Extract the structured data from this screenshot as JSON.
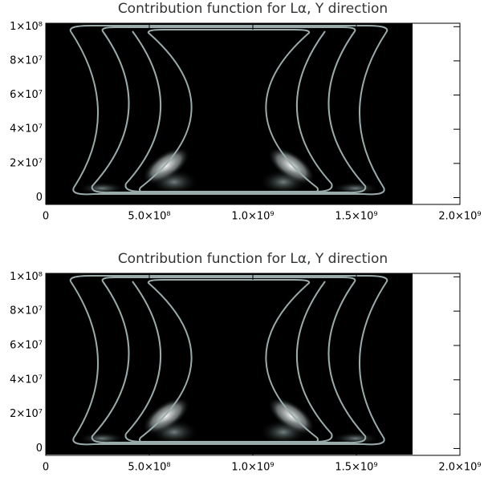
{
  "chart_data": [
    {
      "type": "heatmap",
      "title": "Contribution function for Lα, Y direction",
      "xlim": [
        0,
        2000000000
      ],
      "ylim": [
        -4000000,
        102000000
      ],
      "xticks": [
        0,
        {
          "value": 500000000,
          "label": "5.0×10⁸"
        },
        {
          "value": 1000000000,
          "label": "1.0×10⁹"
        },
        {
          "value": 1500000000,
          "label": "1.5×10⁹"
        },
        {
          "value": 2000000000,
          "label": "2.0×10⁹"
        }
      ],
      "yticks": [
        0,
        {
          "value": 20000000,
          "label": "2×10⁷"
        },
        {
          "value": 40000000,
          "label": "4×10⁷"
        },
        {
          "value": 60000000,
          "label": "6×10⁷"
        },
        {
          "value": 80000000,
          "label": "8×10⁷"
        },
        {
          "value": 100000000,
          "label": "1×10⁸"
        }
      ]
    },
    {
      "type": "heatmap",
      "title": "Contribution function for Lα, Y direction",
      "xlim": [
        0,
        2000000000
      ],
      "ylim": [
        -4000000,
        102000000
      ],
      "xticks": [
        0,
        {
          "value": 500000000,
          "label": "5.0×10⁸"
        },
        {
          "value": 1000000000,
          "label": "1.0×10⁹"
        },
        {
          "value": 1500000000,
          "label": "1.5×10⁹"
        },
        {
          "value": 2000000000,
          "label": "2.0×10⁹"
        }
      ],
      "yticks": [
        0,
        {
          "value": 20000000,
          "label": "2×10⁷"
        },
        {
          "value": 40000000,
          "label": "4×10⁷"
        },
        {
          "value": 60000000,
          "label": "6×10⁷"
        },
        {
          "value": 80000000,
          "label": "8×10⁷"
        },
        {
          "value": 100000000,
          "label": "1×10⁸"
        }
      ]
    }
  ]
}
